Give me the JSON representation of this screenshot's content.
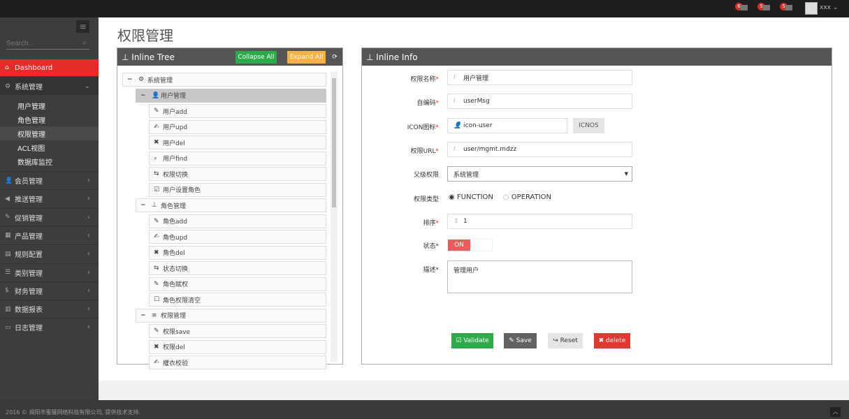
{
  "header": {
    "notifications": [
      {
        "count": "6",
        "icon": "bell-icon"
      },
      {
        "count": "5",
        "icon": "envelope-icon"
      },
      {
        "count": "5",
        "icon": "tasks-icon"
      }
    ],
    "user": "xxx"
  },
  "sidebar": {
    "search_placeholder": "Search...",
    "dashboard": "Dashboard",
    "system": {
      "label": "系统管理",
      "items": [
        "用户管理",
        "角色管理",
        "权限管理",
        "ACL视图",
        "数据库监控"
      ],
      "active": "权限管理"
    },
    "groups": [
      "会员管理",
      "推送管理",
      "促销管理",
      "产品管理",
      "规则配置",
      "类别管理",
      "财务管理",
      "数据报表",
      "日志管理"
    ]
  },
  "page": {
    "title": "权限管理"
  },
  "tree": {
    "title": "Inline Tree",
    "collapse": "Collapse All",
    "expand": "Expand All",
    "colors": {
      "collapse": "#2eaa4a",
      "expand": "#f6b243"
    },
    "nodes": [
      {
        "level": 0,
        "toggle": "−",
        "icon": "⚙",
        "label": "系统管理"
      },
      {
        "level": 1,
        "toggle": "−",
        "icon": "👤",
        "label": "用户管理",
        "selected": true
      },
      {
        "level": 2,
        "icon": "✎",
        "label": "用户add"
      },
      {
        "level": 2,
        "icon": "✍",
        "label": "用户upd"
      },
      {
        "level": 2,
        "icon": "✖",
        "label": "用户del"
      },
      {
        "level": 2,
        "icon": "⌕",
        "label": "用户find"
      },
      {
        "level": 2,
        "icon": "⇆",
        "label": "权限切换"
      },
      {
        "level": 2,
        "icon": "☑",
        "label": "用户设置角色"
      },
      {
        "level": 1,
        "toggle": "−",
        "icon": "⊥",
        "label": "角色管理"
      },
      {
        "level": 2,
        "icon": "✎",
        "label": "角色add"
      },
      {
        "level": 2,
        "icon": "✍",
        "label": "角色upd"
      },
      {
        "level": 2,
        "icon": "✖",
        "label": "角色del"
      },
      {
        "level": 2,
        "icon": "⇆",
        "label": "状态切换"
      },
      {
        "level": 2,
        "icon": "✎",
        "label": "角色赋权"
      },
      {
        "level": 2,
        "icon": "☐",
        "label": "角色权限清空"
      },
      {
        "level": 1,
        "toggle": "−",
        "icon": "≡",
        "label": "权限管理"
      },
      {
        "level": 2,
        "icon": "✎",
        "label": "权限save"
      },
      {
        "level": 2,
        "icon": "✖",
        "label": "权限del"
      },
      {
        "level": 2,
        "icon": "✍",
        "label": "權衣校验"
      }
    ]
  },
  "info": {
    "title": "Inline Info",
    "name_label": "权限名称",
    "name": "用户管理",
    "code_label": "自编码",
    "code": "userMsg",
    "icon_label": "ICON图标",
    "icon": "icon-user",
    "icons_btn": "ICNOS",
    "url_label": "权限URL",
    "url": "user/mgmt.mdzz",
    "parent_label": "父级权限",
    "parent": "系统管理",
    "type_label": "权限类型",
    "type_options": [
      "FUNCTION",
      "OPERATION"
    ],
    "type_selected": "FUNCTION",
    "order_label": "排序",
    "order": "1",
    "status_label": "状态",
    "status": "ON",
    "desc_label": "描述",
    "desc": "管理用户",
    "buttons": {
      "validate": "Validate",
      "save": "Save",
      "reset": "Reset",
      "delete": "delete"
    }
  },
  "footer": {
    "copyright": "2016 © 揭阳市蜜獾网络科技有限公司, 提供技术支持."
  }
}
